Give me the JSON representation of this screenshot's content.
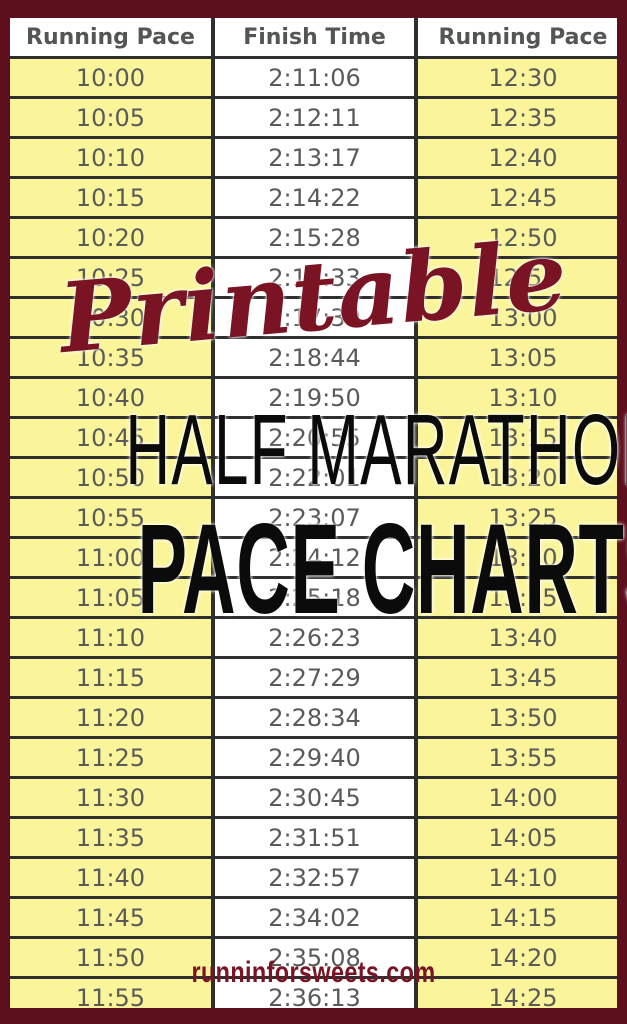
{
  "table": {
    "headers": [
      "Running Pace",
      "Finish Time",
      "Running Pace"
    ],
    "rows": [
      [
        "10:00",
        "2:11:06",
        "12:30"
      ],
      [
        "10:05",
        "2:12:11",
        "12:35"
      ],
      [
        "10:10",
        "2:13:17",
        "12:40"
      ],
      [
        "10:15",
        "2:14:22",
        "12:45"
      ],
      [
        "10:20",
        "2:15:28",
        "12:50"
      ],
      [
        "10:25",
        "2:16:33",
        "12:55"
      ],
      [
        "10:30",
        "2:17:39",
        "13:00"
      ],
      [
        "10:35",
        "2:18:44",
        "13:05"
      ],
      [
        "10:40",
        "2:19:50",
        "13:10"
      ],
      [
        "10:45",
        "2:20:55",
        "13:15"
      ],
      [
        "10:50",
        "2:22:01",
        "13:20"
      ],
      [
        "10:55",
        "2:23:07",
        "13:25"
      ],
      [
        "11:00",
        "2:24:12",
        "13:30"
      ],
      [
        "11:05",
        "2:25:18",
        "13:35"
      ],
      [
        "11:10",
        "2:26:23",
        "13:40"
      ],
      [
        "11:15",
        "2:27:29",
        "13:45"
      ],
      [
        "11:20",
        "2:28:34",
        "13:50"
      ],
      [
        "11:25",
        "2:29:40",
        "13:55"
      ],
      [
        "11:30",
        "2:30:45",
        "14:00"
      ],
      [
        "11:35",
        "2:31:51",
        "14:05"
      ],
      [
        "11:40",
        "2:32:57",
        "14:10"
      ],
      [
        "11:45",
        "2:34:02",
        "14:15"
      ],
      [
        "11:50",
        "2:35:08",
        "14:20"
      ],
      [
        "11:55",
        "2:36:13",
        "14:25"
      ]
    ]
  },
  "overlay": {
    "script_title": "Printable",
    "title_line1": "HALF MARATHON",
    "title_line2": "PACE CHARTS",
    "website": "runninforsweets.com"
  },
  "colors": {
    "frame": "#5e0f1d",
    "pace_cell": "#faf59a",
    "finish_cell": "#ffffff",
    "accent": "#7a1424",
    "title_text": "#0b0b0b"
  }
}
